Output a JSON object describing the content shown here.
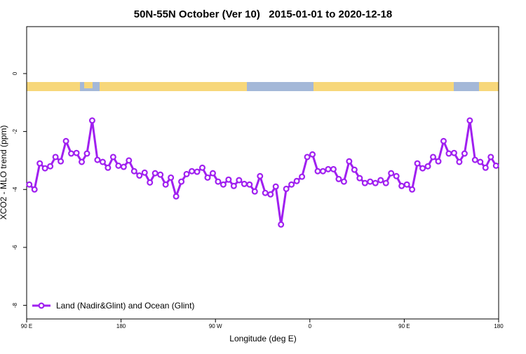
{
  "chart_data": {
    "type": "line",
    "title": "50N-55N October (Ver 10)   2015-01-01 to 2020-12-18",
    "xlabel": "Longitude (deg E)",
    "ylabel": "XCO2 - MLO trend (ppm)",
    "xlim": [
      90,
      540
    ],
    "ylim": [
      -8.47,
      1.62
    ],
    "xticks": [
      {
        "value": 90,
        "label": "90 E"
      },
      {
        "value": 180,
        "label": "180"
      },
      {
        "value": 270,
        "label": "90 W"
      },
      {
        "value": 360,
        "label": "0"
      },
      {
        "value": 450,
        "label": "90 E"
      },
      {
        "value": 540,
        "label": "180"
      }
    ],
    "yticks": [
      0,
      -2,
      -4,
      -6,
      -8
    ],
    "legend": "bottomleft",
    "x": [
      92.5,
      97.5,
      102.5,
      107.5,
      112.5,
      117.5,
      122.5,
      127.5,
      132.5,
      137.5,
      142.5,
      147.5,
      152.5,
      157.5,
      162.5,
      167.5,
      172.5,
      177.5,
      182.5,
      187.5,
      192.5,
      197.5,
      202.5,
      207.5,
      212.5,
      217.5,
      222.5,
      227.5,
      232.5,
      237.5,
      242.5,
      247.5,
      252.5,
      257.5,
      262.5,
      267.5,
      272.5,
      277.5,
      282.5,
      287.5,
      292.5,
      297.5,
      302.5,
      307.5,
      312.5,
      317.5,
      322.5,
      327.5,
      332.5,
      337.5,
      342.5,
      347.5,
      352.5,
      357.5,
      362.5,
      367.5,
      372.5,
      377.5,
      382.5,
      387.5,
      392.5,
      397.5,
      402.5,
      407.5,
      412.5,
      417.5,
      422.5,
      427.5,
      432.5,
      437.5,
      442.5,
      447.5,
      452.5,
      457.5,
      462.5,
      467.5,
      472.5,
      477.5,
      482.5,
      487.5,
      492.5,
      497.5,
      502.5,
      507.5,
      512.5,
      517.5,
      522.5,
      527.5,
      532.5,
      537.5
    ],
    "series": [
      {
        "name": "Land (Nadir&Glint) and Ocean (Glint)",
        "color": "#a020f0",
        "values": [
          -3.83,
          -4.0,
          -3.1,
          -3.27,
          -3.2,
          -2.88,
          -3.03,
          -2.33,
          -2.76,
          -2.74,
          -3.05,
          -2.76,
          -1.62,
          -2.98,
          -3.05,
          -3.25,
          -2.88,
          -3.18,
          -3.22,
          -3.0,
          -3.37,
          -3.52,
          -3.42,
          -3.76,
          -3.44,
          -3.49,
          -3.83,
          -3.59,
          -4.24,
          -3.73,
          -3.47,
          -3.37,
          -3.39,
          -3.25,
          -3.59,
          -3.44,
          -3.73,
          -3.83,
          -3.66,
          -3.88,
          -3.68,
          -3.81,
          -3.83,
          -4.07,
          -3.54,
          -4.12,
          -4.17,
          -3.9,
          -5.21,
          -3.98,
          -3.83,
          -3.71,
          -3.56,
          -2.88,
          -2.79,
          -3.37,
          -3.37,
          -3.3,
          -3.3,
          -3.64,
          -3.73,
          -3.03,
          -3.32,
          -3.61,
          -3.78,
          -3.73,
          -3.78,
          -3.68,
          -3.78,
          -3.44,
          -3.54,
          -3.88,
          -3.83,
          -4.0,
          -3.1,
          -3.27,
          -3.2,
          -2.88,
          -3.03,
          -2.33,
          -2.76,
          -2.74,
          -3.05,
          -2.76,
          -1.62,
          -2.98,
          -3.05,
          -3.25,
          -2.88,
          -3.18
        ]
      }
    ]
  }
}
